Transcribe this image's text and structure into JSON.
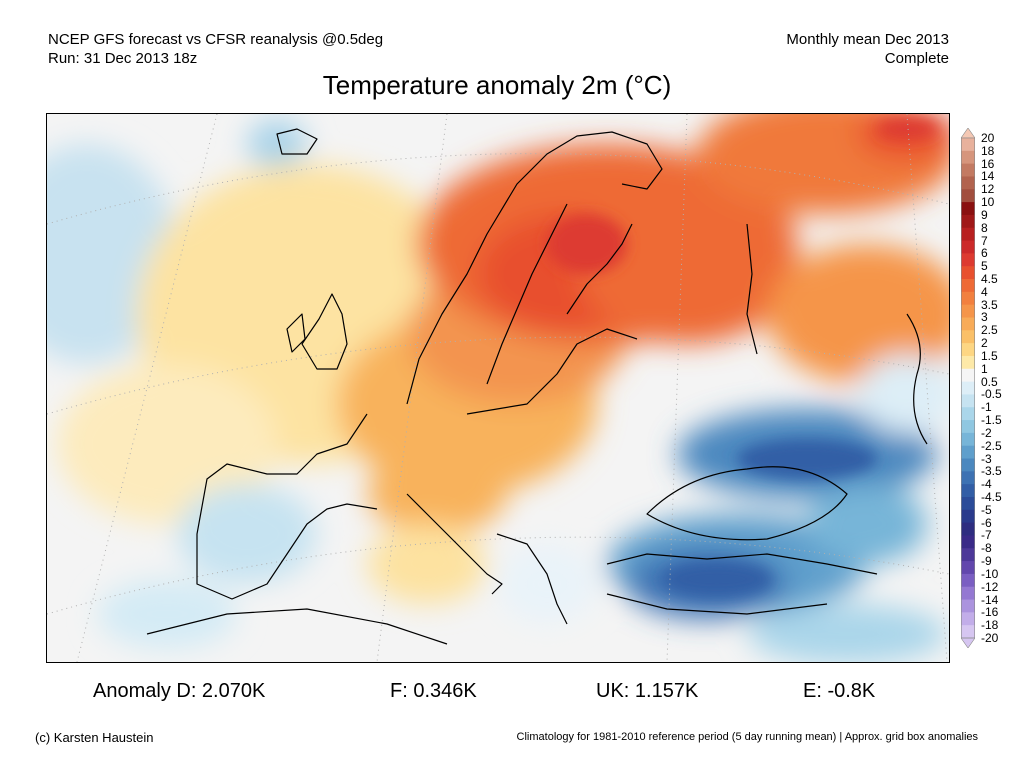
{
  "header": {
    "left_line1": "NCEP GFS forecast vs CFSR reanalysis @0.5deg",
    "left_line2": "Run: 31 Dec 2013 18z",
    "right_line1": "Monthly mean Dec 2013",
    "right_line2": "Complete"
  },
  "title": "Temperature anomaly 2m (°C)",
  "colorbar": {
    "labels": [
      "20",
      "18",
      "16",
      "14",
      "12",
      "10",
      "9",
      "8",
      "7",
      "6",
      "5",
      "4.5",
      "4",
      "3.5",
      "3",
      "2.5",
      "2",
      "1.5",
      "1",
      "0.5",
      "-0.5",
      "-1",
      "-1.5",
      "-2",
      "-2.5",
      "-3",
      "-3.5",
      "-4",
      "-4.5",
      "-5",
      "-6",
      "-7",
      "-8",
      "-9",
      "-10",
      "-12",
      "-14",
      "-16",
      "-18",
      "-20"
    ],
    "colors": [
      "#f4c8b4",
      "#e8b19c",
      "#d6957c",
      "#c37a62",
      "#b2634e",
      "#a24e3e",
      "#8a1010",
      "#a01818",
      "#b82020",
      "#cc2a2a",
      "#dd3a30",
      "#e8502e",
      "#ee6a36",
      "#f2803f",
      "#f5954a",
      "#f8ab58",
      "#fac068",
      "#fdd683",
      "#fde9a8",
      "#f5f5f5",
      "#ddeef7",
      "#c6e3f1",
      "#aad6ea",
      "#8fc7e1",
      "#77b5d8",
      "#5f9fcc",
      "#4b88bf",
      "#3d72b3",
      "#325ea6",
      "#2b4c99",
      "#2a3a8c",
      "#2e2d80",
      "#3a2a88",
      "#4d3899",
      "#6247ad",
      "#7a5ec2",
      "#9478d2",
      "#ab93de",
      "#c2ade9",
      "#d6c6f1"
    ]
  },
  "map": {
    "land_outline_color": "#000000",
    "graticule_color": "#b0b0b0"
  },
  "stats": {
    "d": "Anomaly D: 2.070K",
    "f": "F: 0.346K",
    "uk": "UK: 1.157K",
    "e": "E: -0.8K"
  },
  "footer": {
    "left": "(c) Karsten Haustein",
    "right": "Climatology for 1981-2010 reference period (5 day running mean) | Approx. grid box anomalies"
  }
}
